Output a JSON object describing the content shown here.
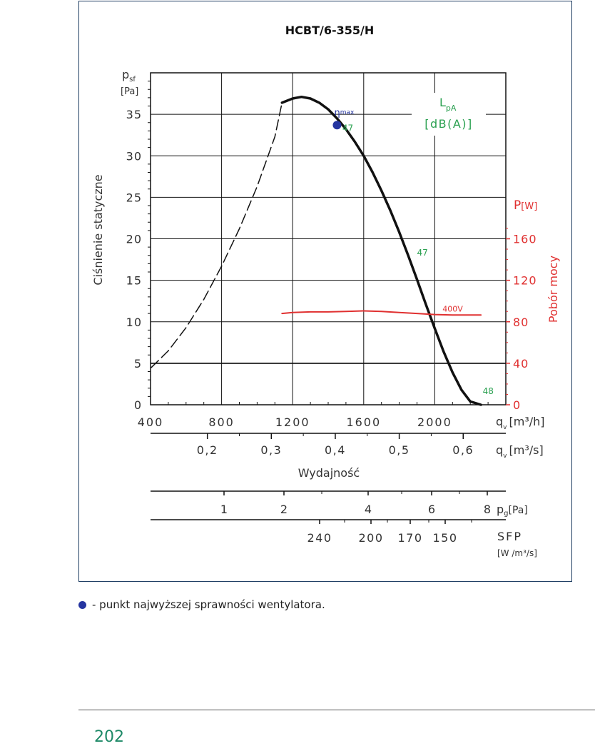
{
  "chart_data": {
    "type": "line",
    "title": "HCBT/6-355/H",
    "x_axis": {
      "label": "Wydajność",
      "unit_main": "q",
      "unit_main_sub": "v",
      "unit_main_tail": "[m³/h]",
      "range": [
        400,
        2400
      ],
      "ticks": [
        400,
        800,
        1200,
        1600,
        2000
      ]
    },
    "x_axis_secondary": {
      "unit": "q",
      "unit_sub": "v",
      "unit_tail": "[m³/s]",
      "tick_values": [
        0.2,
        0.3,
        0.4,
        0.5,
        0.6
      ],
      "tick_labels": [
        "0,2",
        "0,3",
        "0,4",
        "0,5",
        "0,6"
      ]
    },
    "y_axis_left": {
      "label": "Ciśnienie statyczne",
      "unit": "p",
      "unit_sub": "sf",
      "unit_tail": "[Pa]",
      "range": [
        0,
        40
      ],
      "ticks": [
        0,
        5,
        10,
        15,
        20,
        25,
        30,
        35
      ]
    },
    "y_axis_right": {
      "label": "Pobór mocy",
      "unit": "P",
      "unit_tail": "[W]",
      "range": [
        0,
        320
      ],
      "ticks": [
        0,
        40,
        80,
        120,
        160
      ]
    },
    "series": [
      {
        "name": "",
        "style": "solid",
        "x": [
          1140,
          1200,
          1250,
          1300,
          1350,
          1400,
          1450,
          1500,
          1550,
          1600,
          1650,
          1700,
          1750,
          1800,
          1850,
          1900,
          1950,
          2000,
          2050,
          2100,
          2150,
          2200,
          2260
        ],
        "y": [
          36.4,
          36.9,
          37.1,
          36.9,
          36.4,
          35.6,
          34.5,
          33.2,
          31.7,
          30.0,
          28.0,
          25.8,
          23.4,
          20.8,
          18.0,
          15.1,
          12.1,
          9.2,
          6.4,
          3.9,
          1.8,
          0.4,
          0
        ]
      },
      {
        "name": "",
        "style": "dashed",
        "x": [
          405,
          500,
          600,
          700,
          800,
          900,
          1000,
          1100,
          1140
        ],
        "y": [
          4.5,
          6.5,
          9.3,
          12.7,
          16.7,
          21.2,
          26.3,
          32.3,
          36.4
        ]
      },
      {
        "name": "400V",
        "style": "solid",
        "axis": "right",
        "x": [
          1140,
          1200,
          1300,
          1400,
          1500,
          1600,
          1700,
          1800,
          1900,
          2000,
          2100,
          2200,
          2260
        ],
        "y": [
          88,
          89,
          89.5,
          89.5,
          90,
          90.5,
          90,
          89,
          88,
          87,
          86.5,
          86.5,
          86.5
        ]
      }
    ],
    "eta_max": {
      "label_eta": "η",
      "label_sub": "max",
      "x": 1450,
      "y": 33.7
    },
    "lpa_annotations": [
      {
        "text": "47",
        "x": 1480,
        "y": 33.0
      },
      {
        "text": "47",
        "x": 1900,
        "y": 18.0
      },
      {
        "text": "48",
        "x": 2270,
        "y": 1.3
      }
    ],
    "lpa_legend": {
      "line1": "L",
      "line1_sub": "pA",
      "line2": "[dB(A)]"
    },
    "pg_scale": {
      "unit": "p",
      "unit_sub": "g",
      "unit_tail": "[Pa]",
      "labels": [
        "1",
        "2",
        "4",
        "6",
        "8"
      ]
    },
    "sfp_scale": {
      "unit": "SFP",
      "unit_tail": "[W /m³/s]",
      "labels": [
        "240",
        "200",
        "170",
        "150"
      ]
    },
    "colors": {
      "pressure": "#111111",
      "power": "#e03030",
      "lpa": "#2aa050",
      "eta": "#2535a0",
      "frame": "#1f3e63"
    }
  },
  "legend_note": "- punkt najwyższej sprawności wentylatora.",
  "page_number": "202"
}
